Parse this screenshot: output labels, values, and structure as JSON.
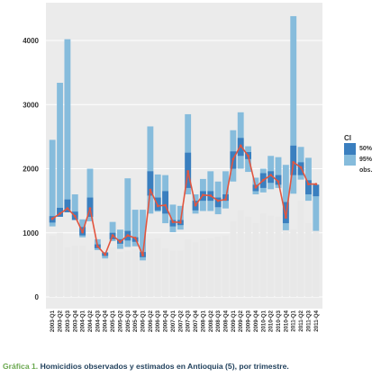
{
  "chart_data": {
    "type": "bar",
    "title": "",
    "xlabel": "",
    "ylabel": "",
    "ylim": [
      0,
      4400
    ],
    "yticks": [
      0,
      1000,
      2000,
      3000,
      4000
    ],
    "grid": true,
    "legend_position": "right",
    "legend": {
      "title": "CI",
      "items": [
        {
          "label": "50%",
          "color": "#3a7fbf"
        },
        {
          "label": "95%",
          "color": "#86bcdc"
        },
        {
          "label": "obs.",
          "color": "#e8e8e8"
        }
      ]
    },
    "categories": [
      "2003-Q1",
      "2003-Q2",
      "2003-Q3",
      "2003-Q4",
      "2004-Q1",
      "2004-Q2",
      "2004-Q3",
      "2004-Q4",
      "2005-Q1",
      "2005-Q2",
      "2005-Q3",
      "2005-Q4",
      "2006-Q1",
      "2006-Q2",
      "2006-Q3",
      "2006-Q4",
      "2007-Q1",
      "2007-Q2",
      "2007-Q3",
      "2007-Q4",
      "2008-Q1",
      "2008-Q2",
      "2008-Q3",
      "2008-Q4",
      "2009-Q1",
      "2009-Q2",
      "2009-Q3",
      "2009-Q4",
      "2010-Q1",
      "2010-Q2",
      "2010-Q3",
      "2010-Q4",
      "2011-Q1",
      "2011-Q2",
      "2011-Q3",
      "2011-Q4"
    ],
    "series": [
      {
        "name": "obs.",
        "color": "#e8e8e8",
        "values": [
          950,
          1000,
          780,
          800,
          800,
          720,
          780,
          640,
          780,
          700,
          720,
          740,
          620,
          900,
          920,
          760,
          720,
          720,
          900,
          850,
          900,
          920,
          940,
          960,
          1180,
          1350,
          1250,
          1150,
          1300,
          1270,
          1250,
          1200,
          1050,
          1500,
          1150,
          1050
        ]
      },
      {
        "name": "95%",
        "color": "#86bcdc",
        "low": [
          1100,
          1300,
          1380,
          1250,
          930,
          1180,
          730,
          600,
          870,
          750,
          780,
          790,
          570,
          1300,
          1330,
          1150,
          1010,
          1050,
          1600,
          1300,
          1340,
          1340,
          1290,
          1380,
          1800,
          2000,
          1950,
          1600,
          1630,
          1680,
          1700,
          1040,
          1610,
          1830,
          1500,
          1030
        ],
        "high": [
          2450,
          3340,
          4020,
          1600,
          1210,
          2000,
          900,
          700,
          1170,
          1050,
          1850,
          1360,
          1360,
          2660,
          1910,
          1900,
          1440,
          1420,
          2850,
          1600,
          1840,
          1960,
          1800,
          1960,
          2600,
          2880,
          2350,
          1860,
          2000,
          2200,
          2180,
          2060,
          4380,
          2340,
          2170,
          1750
        ]
      },
      {
        "name": "50%",
        "color": "#3a7fbf",
        "low": [
          1160,
          1250,
          1320,
          1200,
          960,
          1250,
          760,
          640,
          900,
          830,
          880,
          860,
          620,
          1580,
          1350,
          1300,
          1100,
          1120,
          1700,
          1350,
          1500,
          1500,
          1400,
          1500,
          2000,
          2200,
          2150,
          1650,
          1700,
          1780,
          1750,
          1150,
          1900,
          1900,
          1600,
          1570
        ],
        "high": [
          1260,
          1390,
          1520,
          1330,
          1090,
          1550,
          820,
          690,
          1000,
          900,
          1030,
          930,
          700,
          1960,
          1550,
          1650,
          1200,
          1200,
          2250,
          1500,
          1650,
          1650,
          1550,
          1600,
          2270,
          2480,
          2260,
          1750,
          1930,
          1960,
          1900,
          1480,
          2360,
          2100,
          1820,
          1750
        ]
      },
      {
        "name": "estimated",
        "color": "#e2553f",
        "values": [
          1220,
          1300,
          1380,
          1260,
          1010,
          1380,
          790,
          660,
          960,
          860,
          960,
          920,
          650,
          1670,
          1420,
          1430,
          1170,
          1160,
          1960,
          1430,
          1590,
          1580,
          1500,
          1520,
          2150,
          2360,
          2200,
          1710,
          1820,
          1900,
          1800,
          1240,
          2100,
          2020,
          1760,
          1760
        ]
      }
    ]
  },
  "caption": {
    "number": "Gráfica 1.",
    "text": "Homicidios observados y estimados en Antioquia (5), por trimestre."
  }
}
